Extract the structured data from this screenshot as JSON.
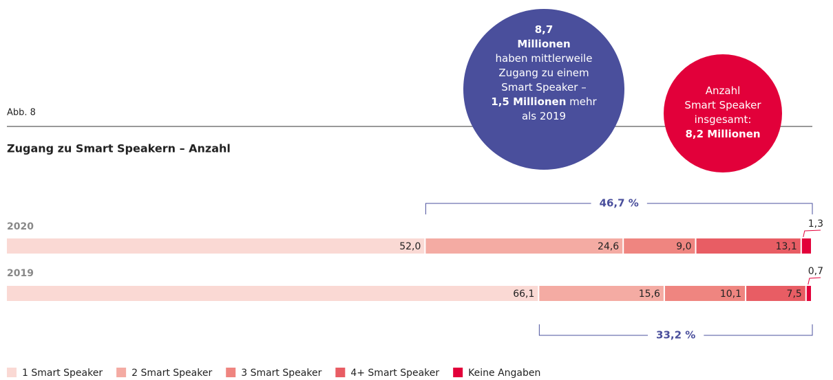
{
  "chart_data": {
    "type": "stacked_bar_horizontal",
    "figure_label": "Abb. 8",
    "title": "Zugang zu Smart Speakern – Anzahl",
    "categories": [
      "2020",
      "2019"
    ],
    "series": [
      {
        "name": "1 Smart Speaker",
        "color": "#fad9d4",
        "values": [
          52.0,
          66.1
        ],
        "value_labels": [
          "52,0",
          "66,1"
        ]
      },
      {
        "name": "2 Smart Speaker",
        "color": "#f4aba3",
        "values": [
          24.6,
          15.6
        ],
        "value_labels": [
          "24,6",
          "15,6"
        ]
      },
      {
        "name": "3 Smart Speaker",
        "color": "#ef8580",
        "values": [
          9.0,
          10.1
        ],
        "value_labels": [
          "9,0",
          "10,1"
        ]
      },
      {
        "name": "4+ Smart Speaker",
        "color": "#e85d64",
        "values": [
          13.1,
          7.5
        ],
        "value_labels": [
          "13,1",
          "7,5"
        ]
      },
      {
        "name": "Keine Angaben",
        "color": "#e2003a",
        "values": [
          1.3,
          0.7
        ],
        "value_labels": [
          "1,3",
          "0,7"
        ]
      }
    ],
    "xlim": [
      0,
      100
    ],
    "legend": "bottom-left",
    "bracket_labels": [
      "46,7 %",
      "33,2 %"
    ],
    "bubbles": [
      {
        "color": "#4a4f9c",
        "lines": [
          [
            {
              "text": "8,7",
              "bold": true
            }
          ],
          [
            {
              "text": "Millionen",
              "bold": true
            }
          ],
          [
            {
              "text": "haben mittlerweile",
              "bold": false
            }
          ],
          [
            {
              "text": "Zugang zu einem",
              "bold": false
            }
          ],
          [
            {
              "text": "Smart Speaker –",
              "bold": false
            }
          ],
          [
            {
              "text": "1,5 Millionen",
              "bold": true
            },
            {
              "text": " mehr",
              "bold": false
            }
          ],
          [
            {
              "text": "als 2019",
              "bold": false
            }
          ]
        ]
      },
      {
        "color": "#e2003a",
        "lines": [
          [
            {
              "text": "Anzahl",
              "bold": false
            }
          ],
          [
            {
              "text": "Smart Speaker",
              "bold": false
            }
          ],
          [
            {
              "text": "insgesamt:",
              "bold": false
            }
          ],
          [
            {
              "text": "8,2 Millionen",
              "bold": true
            }
          ]
        ]
      }
    ]
  }
}
